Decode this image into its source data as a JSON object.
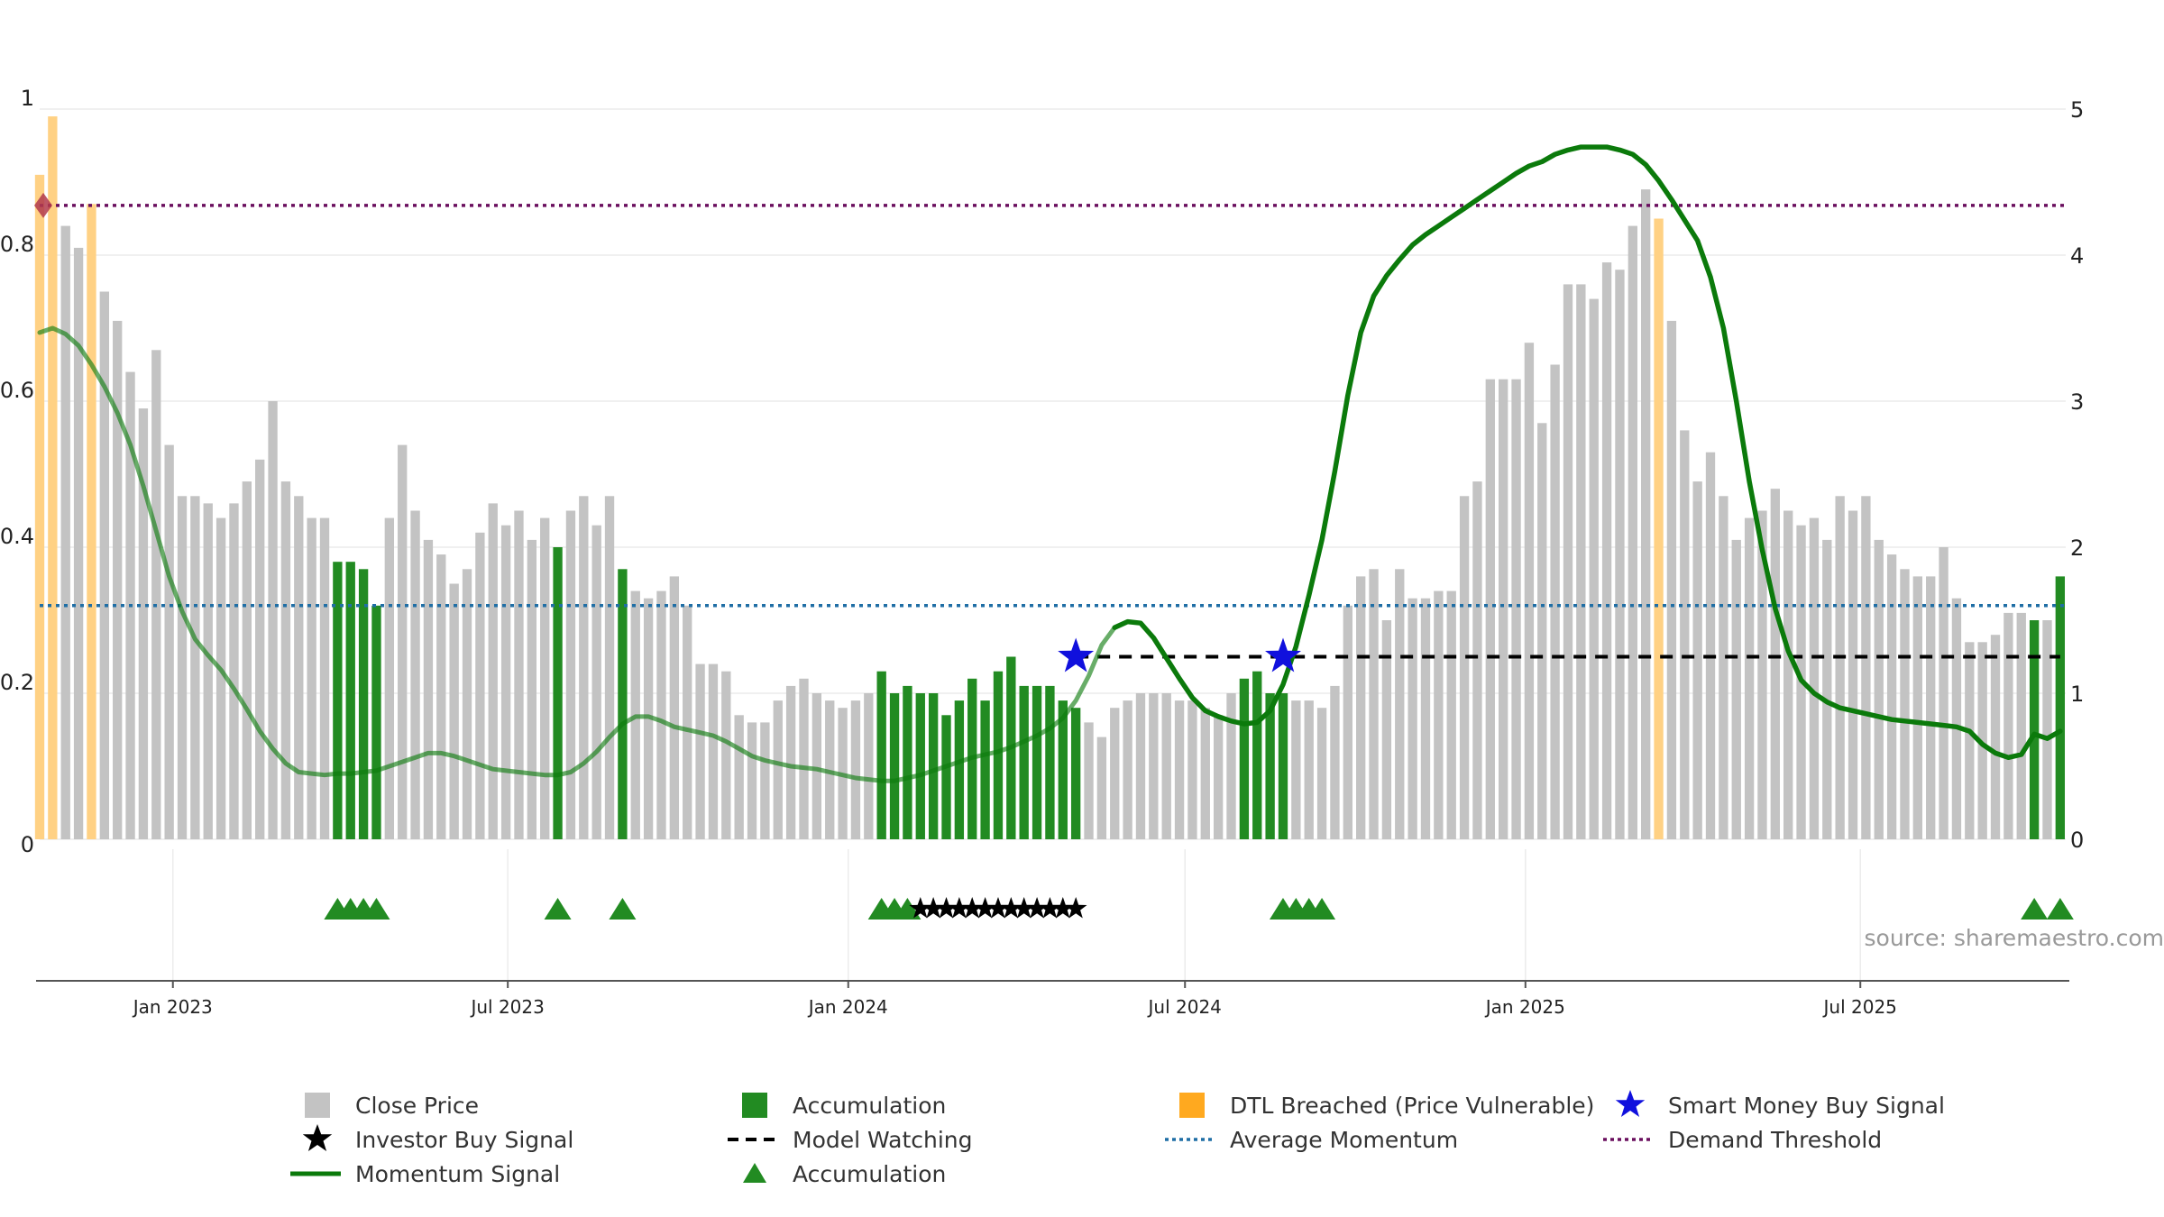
{
  "chart_data": {
    "type": "bar+line",
    "title": "",
    "xlabel": "",
    "ylabel_left": "",
    "ylabel_right": "",
    "ylim_left": [
      0,
      1
    ],
    "ylim_right": [
      0,
      5
    ],
    "yticks_left": [
      0,
      0.2,
      0.4,
      0.6,
      0.8,
      1
    ],
    "yticks_right": [
      0,
      1,
      2,
      3,
      4,
      5
    ],
    "ytick_labels_left": [
      "0",
      "0.2",
      "0.4",
      "0.6",
      "0.8",
      "1"
    ],
    "ytick_labels_right": [
      "0",
      "1",
      "2",
      "3",
      "4",
      "5"
    ],
    "x_start": "2022-10-21",
    "bar_interval_days": 7,
    "x_end": "2025-10-20",
    "xticks": [
      {
        "label": "Jan 2023",
        "date": "2023-01-01"
      },
      {
        "label": "Jul 2023",
        "date": "2023-07-01"
      },
      {
        "label": "Jan 2024",
        "date": "2024-01-01"
      },
      {
        "label": "Jul 2024",
        "date": "2024-07-01"
      },
      {
        "label": "Jan 2025",
        "date": "2025-01-01"
      },
      {
        "label": "Jul 2025",
        "date": "2025-07-01"
      }
    ],
    "close_price": [
      0.91,
      0.99,
      0.84,
      0.81,
      0.87,
      0.75,
      0.71,
      0.64,
      0.59,
      0.67,
      0.54,
      0.47,
      0.47,
      0.46,
      0.44,
      0.46,
      0.49,
      0.52,
      0.6,
      0.49,
      0.47,
      0.44,
      0.44,
      0.38,
      0.38,
      0.37,
      0.32,
      0.44,
      0.54,
      0.45,
      0.41,
      0.39,
      0.35,
      0.37,
      0.42,
      0.46,
      0.43,
      0.45,
      0.41,
      0.44,
      0.4,
      0.45,
      0.47,
      0.43,
      0.47,
      0.37,
      0.34,
      0.33,
      0.34,
      0.36,
      0.32,
      0.24,
      0.24,
      0.23,
      0.17,
      0.16,
      0.16,
      0.19,
      0.21,
      0.22,
      0.2,
      0.19,
      0.18,
      0.19,
      0.2,
      0.23,
      0.2,
      0.21,
      0.2,
      0.2,
      0.17,
      0.19,
      0.22,
      0.19,
      0.23,
      0.25,
      0.21,
      0.21,
      0.21,
      0.19,
      0.18,
      0.16,
      0.14,
      0.18,
      0.19,
      0.2,
      0.2,
      0.2,
      0.19,
      0.19,
      0.18,
      0.17,
      0.2,
      0.22,
      0.23,
      0.2,
      0.2,
      0.19,
      0.19,
      0.18,
      0.21,
      0.32,
      0.36,
      0.37,
      0.3,
      0.37,
      0.33,
      0.33,
      0.34,
      0.34,
      0.47,
      0.49,
      0.63,
      0.63,
      0.63,
      0.68,
      0.57,
      0.65,
      0.76,
      0.76,
      0.74,
      0.79,
      0.78,
      0.84,
      0.89,
      0.85,
      0.71,
      0.56,
      0.49,
      0.53,
      0.47,
      0.41,
      0.44,
      0.45,
      0.48,
      0.45,
      0.43,
      0.44,
      0.41,
      0.47,
      0.45,
      0.47,
      0.41,
      0.39,
      0.37,
      0.36,
      0.36,
      0.4,
      0.33,
      0.27,
      0.27,
      0.28,
      0.31,
      0.31,
      0.3,
      0.3,
      0.36
    ],
    "bar_type": [
      "d",
      "d",
      "g",
      "g",
      "d",
      "g",
      "g",
      "g",
      "g",
      "g",
      "g",
      "g",
      "g",
      "g",
      "g",
      "g",
      "g",
      "g",
      "g",
      "g",
      "g",
      "g",
      "g",
      "a",
      "a",
      "a",
      "a",
      "g",
      "g",
      "g",
      "g",
      "g",
      "g",
      "g",
      "g",
      "g",
      "g",
      "g",
      "g",
      "g",
      "a",
      "g",
      "g",
      "g",
      "g",
      "a",
      "g",
      "g",
      "g",
      "g",
      "g",
      "g",
      "g",
      "g",
      "g",
      "g",
      "g",
      "g",
      "g",
      "g",
      "g",
      "g",
      "g",
      "g",
      "g",
      "a",
      "a",
      "a",
      "a",
      "a",
      "a",
      "a",
      "a",
      "a",
      "a",
      "a",
      "a",
      "a",
      "a",
      "a",
      "a",
      "g",
      "g",
      "g",
      "g",
      "g",
      "g",
      "g",
      "g",
      "g",
      "g",
      "g",
      "g",
      "a",
      "a",
      "a",
      "a",
      "g",
      "g",
      "g",
      "g",
      "g",
      "g",
      "g",
      "g",
      "g",
      "g",
      "g",
      "g",
      "g",
      "g",
      "g",
      "g",
      "g",
      "g",
      "g",
      "g",
      "g",
      "g",
      "g",
      "g",
      "g",
      "g",
      "g",
      "g",
      "d",
      "g",
      "g",
      "g",
      "g",
      "g",
      "g",
      "g",
      "g",
      "g",
      "g",
      "g",
      "g",
      "g",
      "g",
      "g",
      "g",
      "g",
      "g",
      "g",
      "g",
      "g",
      "g",
      "g",
      "g",
      "g",
      "g",
      "g",
      "g",
      "a",
      "g",
      "a"
    ],
    "momentum_signal": {
      "description": "values on right axis (0-5)",
      "points": [
        [
          0,
          3.47
        ],
        [
          1,
          3.5
        ],
        [
          2,
          3.46
        ],
        [
          3,
          3.38
        ],
        [
          4,
          3.25
        ],
        [
          5,
          3.1
        ],
        [
          6,
          2.92
        ],
        [
          7,
          2.7
        ],
        [
          8,
          2.42
        ],
        [
          9,
          2.11
        ],
        [
          10,
          1.8
        ],
        [
          11,
          1.56
        ],
        [
          12,
          1.37
        ],
        [
          13,
          1.26
        ],
        [
          14,
          1.16
        ],
        [
          15,
          1.03
        ],
        [
          16,
          0.89
        ],
        [
          17,
          0.74
        ],
        [
          18,
          0.62
        ],
        [
          19,
          0.52
        ],
        [
          20,
          0.46
        ],
        [
          21,
          0.45
        ],
        [
          22,
          0.44
        ],
        [
          23,
          0.45
        ],
        [
          24,
          0.45
        ],
        [
          25,
          0.46
        ],
        [
          26,
          0.47
        ],
        [
          27,
          0.5
        ],
        [
          28,
          0.53
        ],
        [
          29,
          0.56
        ],
        [
          30,
          0.59
        ],
        [
          31,
          0.59
        ],
        [
          32,
          0.57
        ],
        [
          33,
          0.54
        ],
        [
          34,
          0.51
        ],
        [
          35,
          0.48
        ],
        [
          36,
          0.47
        ],
        [
          37,
          0.46
        ],
        [
          38,
          0.45
        ],
        [
          39,
          0.44
        ],
        [
          40,
          0.44
        ],
        [
          41,
          0.46
        ],
        [
          42,
          0.52
        ],
        [
          43,
          0.6
        ],
        [
          44,
          0.7
        ],
        [
          45,
          0.79
        ],
        [
          46,
          0.84
        ],
        [
          47,
          0.84
        ],
        [
          48,
          0.81
        ],
        [
          49,
          0.77
        ],
        [
          50,
          0.75
        ],
        [
          51,
          0.73
        ],
        [
          52,
          0.71
        ],
        [
          53,
          0.67
        ],
        [
          54,
          0.62
        ],
        [
          55,
          0.57
        ],
        [
          56,
          0.54
        ],
        [
          57,
          0.52
        ],
        [
          58,
          0.5
        ],
        [
          59,
          0.49
        ],
        [
          60,
          0.48
        ],
        [
          61,
          0.46
        ],
        [
          62,
          0.44
        ],
        [
          63,
          0.42
        ],
        [
          64,
          0.41
        ],
        [
          65,
          0.4
        ],
        [
          66,
          0.4
        ],
        [
          67,
          0.42
        ],
        [
          68,
          0.44
        ],
        [
          69,
          0.47
        ],
        [
          70,
          0.5
        ],
        [
          71,
          0.53
        ],
        [
          72,
          0.56
        ],
        [
          73,
          0.58
        ],
        [
          74,
          0.6
        ],
        [
          75,
          0.63
        ],
        [
          76,
          0.67
        ],
        [
          77,
          0.71
        ],
        [
          78,
          0.76
        ],
        [
          79,
          0.83
        ],
        [
          80,
          0.95
        ],
        [
          81,
          1.12
        ],
        [
          82,
          1.33
        ],
        [
          83,
          1.45
        ],
        [
          84,
          1.49
        ],
        [
          85,
          1.48
        ],
        [
          86,
          1.38
        ],
        [
          87,
          1.24
        ],
        [
          88,
          1.1
        ],
        [
          89,
          0.97
        ],
        [
          90,
          0.88
        ],
        [
          91,
          0.84
        ],
        [
          92,
          0.81
        ],
        [
          93,
          0.79
        ],
        [
          94,
          0.8
        ],
        [
          95,
          0.88
        ],
        [
          96,
          1.06
        ],
        [
          97,
          1.32
        ],
        [
          98,
          1.67
        ],
        [
          99,
          2.05
        ],
        [
          100,
          2.52
        ],
        [
          101,
          3.04
        ],
        [
          102,
          3.47
        ],
        [
          103,
          3.72
        ],
        [
          104,
          3.86
        ],
        [
          105,
          3.97
        ],
        [
          106,
          4.07
        ],
        [
          107,
          4.14
        ],
        [
          108,
          4.2
        ],
        [
          109,
          4.26
        ],
        [
          110,
          4.32
        ],
        [
          111,
          4.38
        ],
        [
          112,
          4.44
        ],
        [
          113,
          4.5
        ],
        [
          114,
          4.56
        ],
        [
          115,
          4.61
        ],
        [
          116,
          4.64
        ],
        [
          117,
          4.69
        ],
        [
          118,
          4.72
        ],
        [
          119,
          4.74
        ],
        [
          120,
          4.74
        ],
        [
          121,
          4.74
        ],
        [
          122,
          4.72
        ],
        [
          123,
          4.69
        ],
        [
          124,
          4.62
        ],
        [
          125,
          4.51
        ],
        [
          126,
          4.38
        ],
        [
          127,
          4.24
        ],
        [
          128,
          4.1
        ],
        [
          129,
          3.85
        ],
        [
          130,
          3.5
        ],
        [
          131,
          3.0
        ],
        [
          132,
          2.45
        ],
        [
          133,
          1.98
        ],
        [
          134,
          1.58
        ],
        [
          135,
          1.29
        ],
        [
          136,
          1.09
        ],
        [
          137,
          1.0
        ],
        [
          138,
          0.94
        ],
        [
          139,
          0.9
        ],
        [
          140,
          0.88
        ],
        [
          141,
          0.86
        ],
        [
          142,
          0.84
        ],
        [
          143,
          0.82
        ],
        [
          144,
          0.81
        ],
        [
          145,
          0.8
        ],
        [
          146,
          0.79
        ],
        [
          147,
          0.78
        ],
        [
          148,
          0.77
        ],
        [
          149,
          0.74
        ],
        [
          150,
          0.65
        ],
        [
          151,
          0.59
        ],
        [
          152,
          0.56
        ],
        [
          153,
          0.58
        ],
        [
          154,
          0.72
        ],
        [
          155,
          0.69
        ],
        [
          156,
          0.74
        ]
      ]
    },
    "fade_momentum_from_index": 84,
    "average_momentum": 0.32,
    "demand_threshold": 0.868,
    "model_watching": {
      "start_index": 80,
      "end_index": 156,
      "level": 0.25
    },
    "smart_money_buy_signals": [
      {
        "index": 80,
        "value": 0.25
      },
      {
        "index": 96,
        "value": 0.25
      }
    ],
    "dtl_marker_index": 0,
    "accumulation_triangles": [
      23,
      24,
      25,
      26,
      40,
      45,
      65,
      66,
      67,
      96,
      97,
      98,
      99,
      154,
      156
    ],
    "investor_buy_signals": [
      68,
      69,
      70,
      71,
      72,
      73,
      74,
      75,
      76,
      77,
      78,
      79,
      80
    ],
    "colors": {
      "close_price": "#c3c3c3",
      "accumulation": "#228b22",
      "dtl_breached": "#ffd184",
      "momentum": "#0b7a0b",
      "smart_money": "#1010dd",
      "average_momentum": "#1f6ea5",
      "demand_threshold": "#6a0f5e",
      "marker": "#b23a4c",
      "investor": "#000000"
    }
  },
  "source_label": "source: sharemaestro.com",
  "legend": {
    "close_price": "Close Price",
    "accumulation": "Accumulation",
    "dtl_breached": "DTL Breached (Price Vulnerable)",
    "smart_money": "Smart Money Buy Signal",
    "investor_buy": "Investor Buy Signal",
    "model_watching": "Model Watching",
    "average_momentum": "Average Momentum",
    "demand_threshold": "Demand Threshold",
    "momentum_signal": "Momentum Signal",
    "accumulation_triangle": "Accumulation"
  }
}
